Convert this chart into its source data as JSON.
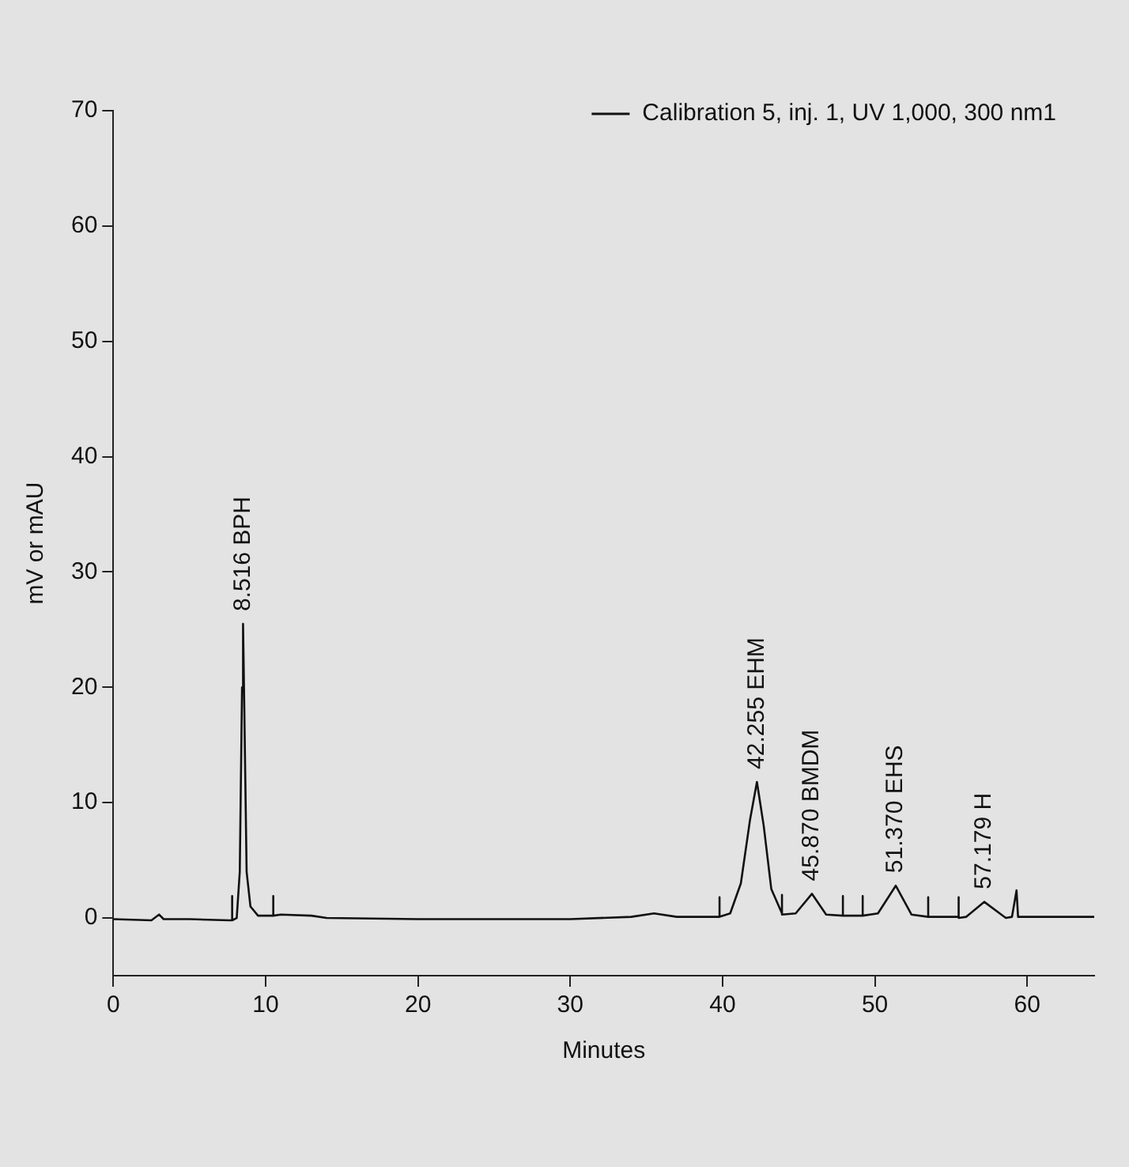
{
  "chart_data": {
    "type": "line",
    "xlabel": "Minutes",
    "ylabel": "mV or mAU",
    "xlim": [
      0,
      64.4
    ],
    "xticks": [
      0,
      10,
      20,
      30,
      40,
      50,
      60
    ],
    "ylim": [
      -5,
      70
    ],
    "yticks": [
      0,
      10,
      20,
      30,
      40,
      50,
      60,
      70
    ],
    "grid": false,
    "legend": "top right",
    "marker": "none",
    "line_style": "solid",
    "series": [
      {
        "name": "Calibration 5, inj. 1, UV 1,000, 300 nm1",
        "color": "#111111",
        "x": [
          0,
          2.5,
          3,
          3.3,
          5,
          7.6,
          7.8,
          7.8,
          7.8,
          8.1,
          8.3,
          8.45,
          8.516,
          8.6,
          8.75,
          9,
          9.5,
          10.5,
          10.5,
          10.5,
          11,
          13,
          14,
          20,
          30,
          34,
          35.5,
          37,
          39.8,
          39.8,
          39.8,
          40.5,
          41.2,
          41.8,
          42.255,
          42.7,
          43.2,
          43.9,
          43.9,
          43.9,
          44.8,
          45.87,
          46.8,
          47.9,
          47.9,
          47.9,
          49.2,
          49.2,
          49.2,
          50.2,
          51.37,
          52.4,
          53.5,
          53.5,
          53.5,
          55.5,
          55.5,
          55.5,
          56,
          57.179,
          58.3,
          58.6,
          59,
          59.3,
          59.4,
          62,
          64.4
        ],
        "values": [
          -0.1,
          -0.2,
          0.3,
          -0.1,
          -0.1,
          -0.2,
          -0.2,
          1.9,
          -0.2,
          0,
          4,
          20,
          25.5,
          18,
          4,
          1,
          0.2,
          0.2,
          1.9,
          0.2,
          0.3,
          0.2,
          0,
          -0.1,
          -0.1,
          0.1,
          0.4,
          0.1,
          0.1,
          1.8,
          0.1,
          0.4,
          3,
          8.5,
          11.8,
          8,
          2.5,
          0.4,
          2,
          0.3,
          0.4,
          2.1,
          0.3,
          0.2,
          1.9,
          0.2,
          0.2,
          1.9,
          0.2,
          0.4,
          2.8,
          0.3,
          0.1,
          1.8,
          0.1,
          0.1,
          1.8,
          0,
          0.1,
          1.4,
          0.3,
          0,
          0.1,
          2.4,
          0.1,
          0.1,
          0.1
        ]
      }
    ],
    "annotations": [
      {
        "text": "8.516 BPH",
        "x": 8.516,
        "y": 25.5
      },
      {
        "text": "42.255 EHM",
        "x": 42.255,
        "y": 11.8
      },
      {
        "text": "45.870 BMDM",
        "x": 45.87,
        "y": 2.1
      },
      {
        "text": "51.370 EHS",
        "x": 51.37,
        "y": 2.8
      },
      {
        "text": "57.179 H",
        "x": 57.179,
        "y": 1.4
      }
    ]
  }
}
